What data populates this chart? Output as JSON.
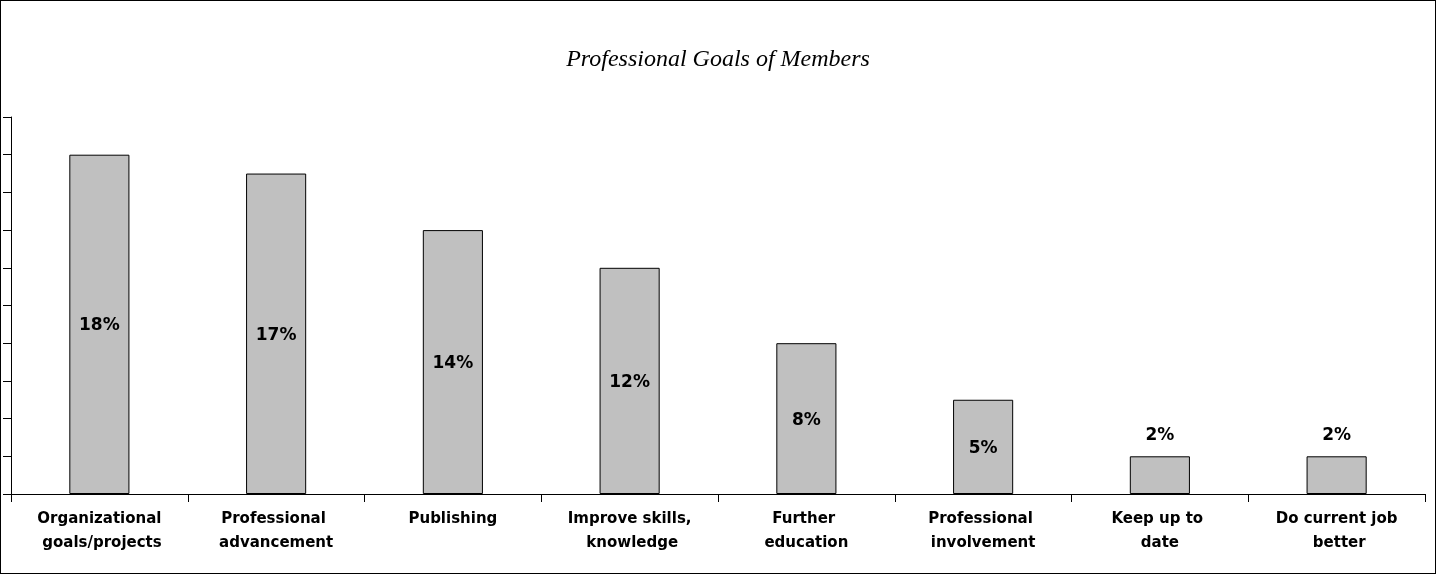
{
  "chart_data": {
    "type": "bar",
    "title": "Professional Goals of Members",
    "categories": [
      "Organizational goals/projects",
      "Professional advancement",
      "Publishing",
      "Improve skills, knowledge",
      "Further education",
      "Professional involvement",
      "Keep up to date",
      "Do current job better"
    ],
    "values": [
      18,
      17,
      14,
      12,
      8,
      5,
      2,
      2
    ],
    "value_labels": [
      "18%",
      "17%",
      "14%",
      "12%",
      "8%",
      "5%",
      "2%",
      "2%"
    ],
    "color": "#c0c0c0",
    "ylim": [
      0,
      20
    ],
    "yticks": [
      {
        "value": 0,
        "label": null
      },
      {
        "value": 2,
        "label": null
      },
      {
        "value": 4,
        "label": null
      },
      {
        "value": 6,
        "label": null
      },
      {
        "value": 8,
        "label": null
      },
      {
        "value": 10,
        "label": null
      },
      {
        "value": 12,
        "label": null
      },
      {
        "value": 14,
        "label": null
      },
      {
        "value": 16,
        "label": null
      },
      {
        "value": 18,
        "label": null
      },
      {
        "value": 20,
        "label": null
      }
    ],
    "tick_labels": "x",
    "grid": false
  }
}
